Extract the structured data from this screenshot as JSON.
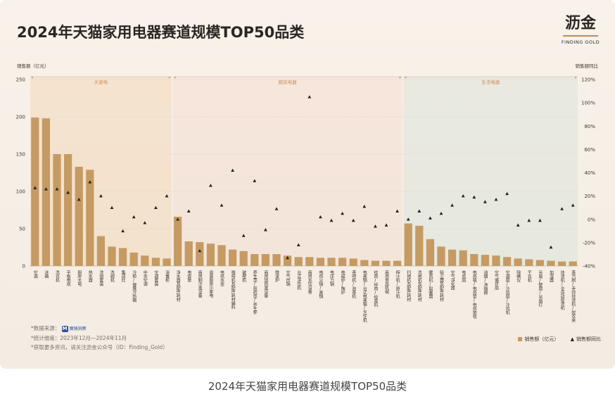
{
  "title": "2024年天猫家用电器赛道规模TOP50品类",
  "logo": {
    "mark": "沥金",
    "sub": "FINDING GOLD"
  },
  "caption": "2024年天猫家用电器赛道规模TOP50品类",
  "notes": {
    "source_prefix": "*数据来源：",
    "source_name": "魔镜洞察",
    "period": "*统计维度：2023年12月—2024年11月",
    "more": "*获取更多资讯，请关注沥金公众号（ID：Finding_Gold）"
  },
  "legend": {
    "bar_label": "销售额（亿元）",
    "marker_label": "销售额同比"
  },
  "colors": {
    "bar": "#c59b63",
    "marker": "#222222",
    "big": "#f2d3b0",
    "kitchen": "#f3d9cc",
    "life": "#d6e0d6",
    "grid": "#e3dbd0"
  },
  "chart_data": {
    "type": "bar",
    "ylabel": "销售额（亿元）",
    "y2label": "销售额同比",
    "ylim": [
      0,
      250
    ],
    "y2lim": [
      -40,
      120
    ],
    "yticks": [
      0,
      50,
      100,
      150,
      200,
      250
    ],
    "y2ticks": [
      "-40%",
      "-20%",
      "0%",
      "20%",
      "40%",
      "60%",
      "80%",
      "100%",
      "120%"
    ],
    "groups": [
      {
        "name": "大家电",
        "start": 0,
        "end": 10,
        "color": "big"
      },
      {
        "name": "厨房电器",
        "start": 10,
        "end": 26,
        "color": "kitchen"
      },
      {
        "name": "生活电器",
        "start": 26,
        "end": 40,
        "color": "life"
      }
    ],
    "categories": [
      "空调",
      "冰箱",
      "洗衣机",
      "平板电视",
      "厨房大电",
      "热水器",
      "洗烘套装",
      "洗碗机",
      "集成灶",
      "冷柜/便携冷热箱",
      "中央空调",
      "空调套装",
      "消毒柜",
      "净水器及配件耗材",
      "电饭煲",
      "商用制冷类设备",
      "母婴厨房小家电",
      "电热水壶",
      "咖啡机及配件耗材辅料",
      "破壁机",
      "养生壶/煎药壶/养生杯",
      "商用加热类设备",
      "微波炉",
      "空气炸锅",
      "台式净饮机",
      "商用水饮设备",
      "电热火锅/蒸锅",
      "电压力锅",
      "电磁炉/陶炉",
      "茶吧机/泡茶机",
      "电蒸锅/台式电蒸箱/烹饪机",
      "绞肉/碎肉/绞菜机",
      "商用食品机械",
      "榨汁机/原汁机",
      "扫地机及配件耗材",
      "洗地机及配件耗材",
      "暖风机/取暖器",
      "吸尘器及配件耗材",
      "空气净化器",
      "电风扇",
      "电热毯/电热垫/电热地毯",
      "油烟/净烟器",
      "空气循环扇",
      "空调扇/冷风扇/冷风机",
      "除螨仪",
      "干衣机",
      "吊扇/壁扇/吊扇灯",
      "加湿器",
      "挂烫机/全自动熨烫机",
      "蒸汽刷/手持挂烫机/熨衣夹"
    ],
    "group_index": [
      0,
      0,
      0,
      0,
      0,
      0,
      0,
      0,
      0,
      0,
      0,
      0,
      0,
      1,
      1,
      1,
      1,
      1,
      1,
      1,
      1,
      1,
      1,
      1,
      1,
      1,
      1,
      1,
      1,
      1,
      1,
      1,
      1,
      1,
      2,
      2,
      2,
      2,
      2,
      2,
      2,
      2,
      2,
      2,
      2,
      2,
      2,
      2,
      2,
      2
    ],
    "series": [
      {
        "name": "销售额（亿元）",
        "type": "bar",
        "values": [
          199,
          198,
          150,
          150,
          133,
          129,
          40,
          26,
          24,
          18,
          14,
          11,
          10,
          66,
          33,
          32,
          30,
          28,
          22,
          20,
          16,
          16,
          16,
          14,
          12,
          12,
          11,
          11,
          11,
          10,
          8,
          7,
          7,
          7,
          57,
          54,
          36,
          26,
          22,
          21,
          16,
          15,
          14,
          12,
          10,
          9,
          8,
          7,
          6,
          6
        ]
      },
      {
        "name": "销售额同比",
        "type": "marker",
        "values": [
          27,
          26,
          26,
          23,
          17,
          32,
          20,
          10,
          -10,
          2,
          -3,
          10,
          20,
          0,
          7,
          -27,
          29,
          12,
          42,
          -14,
          33,
          -9,
          9,
          -33,
          -22,
          105,
          2,
          -1,
          5,
          -1,
          11,
          -6,
          -5,
          7,
          0,
          7,
          1,
          5,
          12,
          20,
          19,
          15,
          17,
          22,
          -5,
          -1,
          -1,
          -24,
          9,
          12
        ]
      }
    ]
  }
}
